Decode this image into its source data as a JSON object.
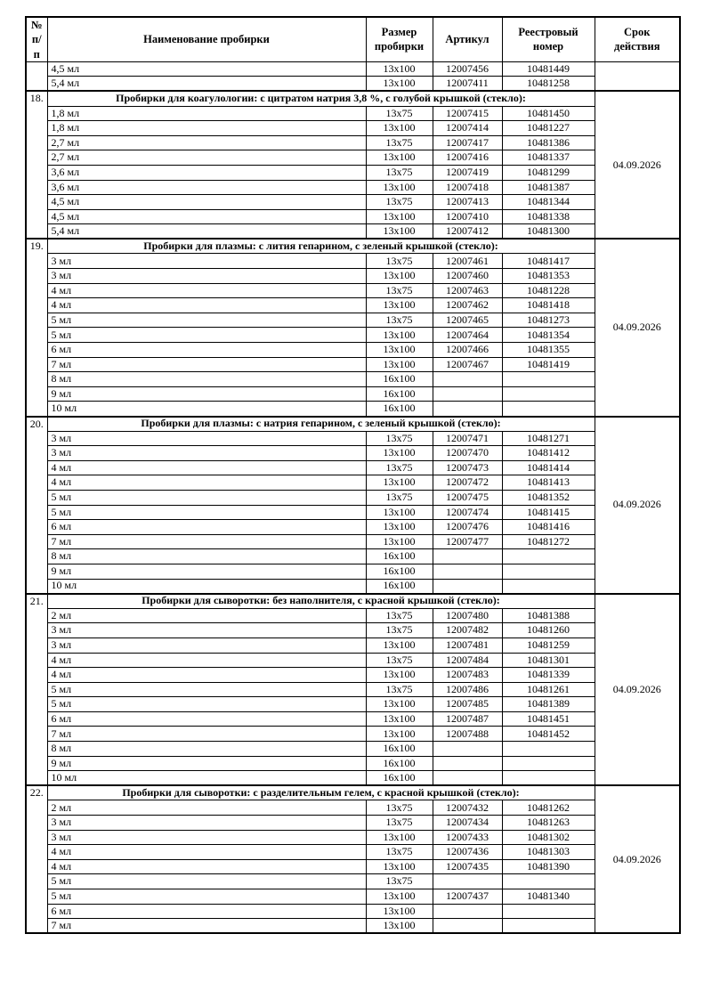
{
  "header": {
    "columns": [
      "№\nп/п",
      "Наименование пробирки",
      "Размер\nпробирки",
      "Артикул",
      "Реестровый\nномер",
      "Срок\nдействия"
    ]
  },
  "sections": [
    {
      "num": "",
      "title": null,
      "validity": "",
      "rows": [
        {
          "name": "4,5 мл",
          "size": "13x100",
          "article": "12007456",
          "reg": "10481449"
        },
        {
          "name": "5,4 мл",
          "size": "13x100",
          "article": "12007411",
          "reg": "10481258"
        }
      ]
    },
    {
      "num": "18.",
      "title": "Пробирки для коагулологии: с цитратом натрия 3,8 %, с голубой крышкой (стекло):",
      "validity": "04.09.2026",
      "rows": [
        {
          "name": "1,8 мл",
          "size": "13x75",
          "article": "12007415",
          "reg": "10481450"
        },
        {
          "name": "1,8 мл",
          "size": "13x100",
          "article": "12007414",
          "reg": "10481227"
        },
        {
          "name": "2,7 мл",
          "size": "13x75",
          "article": "12007417",
          "reg": "10481386"
        },
        {
          "name": "2,7 мл",
          "size": "13x100",
          "article": "12007416",
          "reg": "10481337"
        },
        {
          "name": "3,6 мл",
          "size": "13x75",
          "article": "12007419",
          "reg": "10481299"
        },
        {
          "name": "3,6 мл",
          "size": "13x100",
          "article": "12007418",
          "reg": "10481387"
        },
        {
          "name": "4,5 мл",
          "size": "13x75",
          "article": "12007413",
          "reg": "10481344"
        },
        {
          "name": "4,5 мл",
          "size": "13x100",
          "article": "12007410",
          "reg": "10481338"
        },
        {
          "name": "5,4 мл",
          "size": "13x100",
          "article": "12007412",
          "reg": "10481300"
        }
      ]
    },
    {
      "num": "19.",
      "title": "Пробирки для плазмы: с лития гепарином, с зеленый крышкой (стекло):",
      "validity": "04.09.2026",
      "rows": [
        {
          "name": "3 мл",
          "size": "13x75",
          "article": "12007461",
          "reg": "10481417"
        },
        {
          "name": "3 мл",
          "size": "13x100",
          "article": "12007460",
          "reg": "10481353"
        },
        {
          "name": "4 мл",
          "size": "13x75",
          "article": "12007463",
          "reg": "10481228"
        },
        {
          "name": "4 мл",
          "size": "13x100",
          "article": "12007462",
          "reg": "10481418"
        },
        {
          "name": "5 мл",
          "size": "13x75",
          "article": "12007465",
          "reg": "10481273"
        },
        {
          "name": "5 мл",
          "size": "13x100",
          "article": "12007464",
          "reg": "10481354"
        },
        {
          "name": "6 мл",
          "size": "13x100",
          "article": "12007466",
          "reg": "10481355"
        },
        {
          "name": "7 мл",
          "size": "13x100",
          "article": "12007467",
          "reg": "10481419"
        },
        {
          "name": "8 мл",
          "size": "16x100",
          "article": "",
          "reg": ""
        },
        {
          "name": "9 мл",
          "size": "16x100",
          "article": "",
          "reg": ""
        },
        {
          "name": "10 мл",
          "size": "16x100",
          "article": "",
          "reg": ""
        }
      ]
    },
    {
      "num": "20.",
      "title": "Пробирки для плазмы: с натрия гепарином, с зеленый крышкой (стекло):",
      "validity": "04.09.2026",
      "rows": [
        {
          "name": "3 мл",
          "size": "13x75",
          "article": "12007471",
          "reg": "10481271"
        },
        {
          "name": "3 мл",
          "size": "13x100",
          "article": "12007470",
          "reg": "10481412"
        },
        {
          "name": "4 мл",
          "size": "13x75",
          "article": "12007473",
          "reg": "10481414"
        },
        {
          "name": "4 мл",
          "size": "13x100",
          "article": "12007472",
          "reg": "10481413"
        },
        {
          "name": "5 мл",
          "size": "13x75",
          "article": "12007475",
          "reg": "10481352"
        },
        {
          "name": "5 мл",
          "size": "13x100",
          "article": "12007474",
          "reg": "10481415"
        },
        {
          "name": "6 мл",
          "size": "13x100",
          "article": "12007476",
          "reg": "10481416"
        },
        {
          "name": "7 мл",
          "size": "13x100",
          "article": "12007477",
          "reg": "10481272"
        },
        {
          "name": "8 мл",
          "size": "16x100",
          "article": "",
          "reg": ""
        },
        {
          "name": "9 мл",
          "size": "16x100",
          "article": "",
          "reg": ""
        },
        {
          "name": "10 мл",
          "size": "16x100",
          "article": "",
          "reg": ""
        }
      ]
    },
    {
      "num": "21.",
      "title": "Пробирки для сыворотки: без наполнителя, с красной крышкой (стекло):",
      "validity": "04.09.2026",
      "rows": [
        {
          "name": "2 мл",
          "size": "13x75",
          "article": "12007480",
          "reg": "10481388"
        },
        {
          "name": "3 мл",
          "size": "13x75",
          "article": "12007482",
          "reg": "10481260"
        },
        {
          "name": "3 мл",
          "size": "13x100",
          "article": "12007481",
          "reg": "10481259"
        },
        {
          "name": "4 мл",
          "size": "13x75",
          "article": "12007484",
          "reg": "10481301"
        },
        {
          "name": "4 мл",
          "size": "13x100",
          "article": "12007483",
          "reg": "10481339"
        },
        {
          "name": "5 мл",
          "size": "13x75",
          "article": "12007486",
          "reg": "10481261"
        },
        {
          "name": "5 мл",
          "size": "13x100",
          "article": "12007485",
          "reg": "10481389"
        },
        {
          "name": "6 мл",
          "size": "13x100",
          "article": "12007487",
          "reg": "10481451"
        },
        {
          "name": "7 мл",
          "size": "13x100",
          "article": "12007488",
          "reg": "10481452"
        },
        {
          "name": "8 мл",
          "size": "16x100",
          "article": "",
          "reg": ""
        },
        {
          "name": "9 мл",
          "size": "16x100",
          "article": "",
          "reg": ""
        },
        {
          "name": "10 мл",
          "size": "16x100",
          "article": "",
          "reg": ""
        }
      ]
    },
    {
      "num": "22.",
      "title": "Пробирки для сыворотки: с разделительным гелем, с красной крышкой (стекло):",
      "validity": "04.09.2026",
      "rows": [
        {
          "name": "2 мл",
          "size": "13x75",
          "article": "12007432",
          "reg": "10481262"
        },
        {
          "name": "3 мл",
          "size": "13x75",
          "article": "12007434",
          "reg": "10481263"
        },
        {
          "name": "3 мл",
          "size": "13x100",
          "article": "12007433",
          "reg": "10481302"
        },
        {
          "name": "4 мл",
          "size": "13x75",
          "article": "12007436",
          "reg": "10481303"
        },
        {
          "name": "4 мл",
          "size": "13x100",
          "article": "12007435",
          "reg": "10481390"
        },
        {
          "name": "5 мл",
          "size": "13x75",
          "article": "",
          "reg": ""
        },
        {
          "name": "5 мл",
          "size": "13x100",
          "article": "12007437",
          "reg": "10481340"
        },
        {
          "name": "6 мл",
          "size": "13x100",
          "article": "",
          "reg": ""
        },
        {
          "name": "7 мл",
          "size": "13x100",
          "article": "",
          "reg": ""
        }
      ]
    }
  ]
}
